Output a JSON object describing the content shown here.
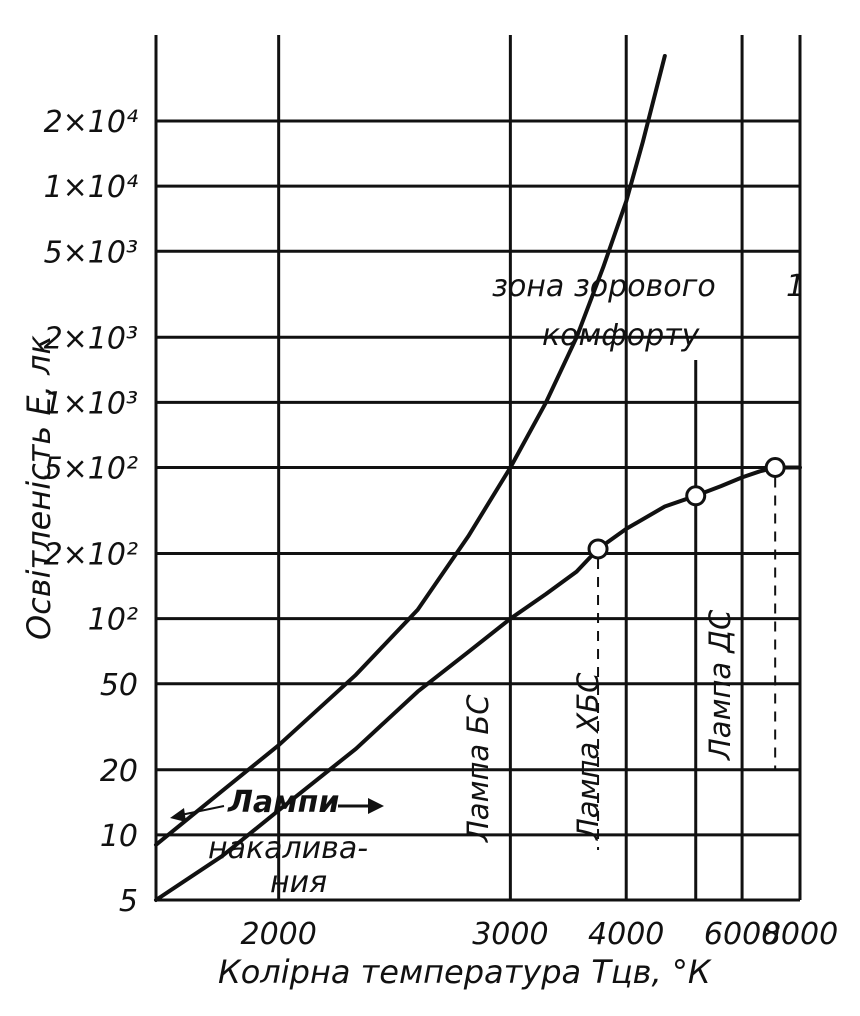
{
  "chart_data": {
    "type": "line",
    "xlabel": "Колірна температура Тцв, °К",
    "ylabel": "Освітленість Е, лк",
    "y_scale": "log",
    "ylim": [
      5,
      50000
    ],
    "x_scale": "reciprocal",
    "xlim": [
      1700,
      8000
    ],
    "grid": true,
    "y_ticks": [
      {
        "value": 20000,
        "label": "2×10⁴"
      },
      {
        "value": 10000,
        "label": "1×10⁴"
      },
      {
        "value": 5000,
        "label": "5×10³"
      },
      {
        "value": 2000,
        "label": "2×10³"
      },
      {
        "value": 1000,
        "label": "1×10³"
      },
      {
        "value": 500,
        "label": "5×10²"
      },
      {
        "value": 200,
        "label": "2×10²"
      },
      {
        "value": 100,
        "label": "10²"
      },
      {
        "value": 50,
        "label": "50"
      },
      {
        "value": 20,
        "label": "20"
      },
      {
        "value": 10,
        "label": "10"
      },
      {
        "value": 5,
        "label": "5"
      }
    ],
    "x_ticks": [
      {
        "value": 2000,
        "label": "2000"
      },
      {
        "value": 3000,
        "label": "3000"
      },
      {
        "value": 4000,
        "label": "4000"
      },
      {
        "value": 6000,
        "label": "6000"
      },
      {
        "value": 8000,
        "label": "8000"
      }
    ],
    "series": [
      {
        "x": [
          1700,
          1850,
          2000,
          2250,
          2500,
          2750,
          3000,
          3250,
          3500,
          3750,
          4000,
          4200,
          4500
        ],
        "y": [
          9,
          16,
          26,
          55,
          110,
          240,
          500,
          1000,
          2000,
          4200,
          8500,
          16000,
          40000
        ]
      },
      {
        "x": [
          1700,
          1850,
          2000,
          2250,
          2500,
          2750,
          3000,
          3250,
          3500,
          3700,
          4000,
          4500,
          5000,
          5500,
          6000,
          6500,
          7000,
          8000
        ],
        "y": [
          5,
          8,
          13,
          25,
          46,
          70,
          100,
          130,
          165,
          210,
          260,
          330,
          370,
          410,
          450,
          480,
          500,
          500
        ]
      }
    ],
    "points": [
      {
        "x": 3700,
        "y": 210
      },
      {
        "x": 5000,
        "y": 370
      },
      {
        "x": 7000,
        "y": 500
      }
    ],
    "annotations": {
      "comfort_zone": [
        "зона зорового",
        "комфорту"
      ],
      "lamps_line1": "Лампи",
      "lamps_line2": "накалива-",
      "lamps_line3": "ния",
      "lamp_bs": "Лампа БС",
      "lamp_khbs": "Лампа ХБС",
      "lamp_ds": "Лампа ДС",
      "curve_number": "1"
    }
  }
}
